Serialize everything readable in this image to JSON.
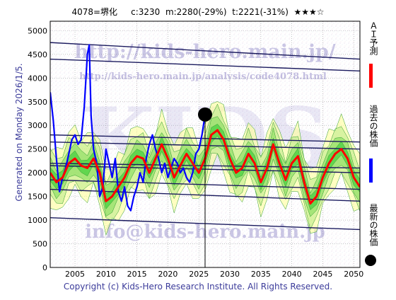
{
  "header": {
    "code": "4078=堺化",
    "current": "c:3230",
    "model": "m:2280(-29%)",
    "target": "t:2221(-31%)",
    "stars": "★★★☆"
  },
  "watermark": {
    "url": "http://kids-hero.main.jp/",
    "analysis_url": "http://kids-hero.main.jp/analysis/code4078.html",
    "brand": "KIDS",
    "email": "info@kids-hero.main.jp"
  },
  "side_label": "Generated on Monday 2026/1/5.",
  "footer": "Copyright (c) Kids-Hero Research Institute. All Rights Reserved.",
  "legend": {
    "ai": "ＡＩ予測",
    "past": "過去の株価",
    "latest": "最新の株価"
  },
  "colors": {
    "prediction": "#ff0000",
    "past_price": "#0000ff",
    "latest": "#000000",
    "band_green": "#33cc33",
    "band_yellow": "#ffff99",
    "trend_lines": "#1a1a5e"
  },
  "chart_data": {
    "type": "line",
    "xlim": [
      2001,
      2051
    ],
    "ylim": [
      0,
      5200
    ],
    "x_ticks": [
      "2005",
      "2010",
      "2015",
      "2020",
      "2025",
      "2030",
      "2035",
      "2040",
      "2045",
      "2050"
    ],
    "y_ticks": [
      "0",
      "500",
      "1000",
      "1500",
      "2000",
      "2500",
      "3000",
      "3500",
      "4000",
      "4500",
      "5000"
    ],
    "grid": true,
    "current_marker": {
      "x": 2026.0,
      "y": 3230
    },
    "cursor_x": 2026.0,
    "series": [
      {
        "kind": "past_price",
        "x": [
          2001.0,
          2001.5,
          2002.0,
          2002.5,
          2003.0,
          2003.5,
          2004.0,
          2004.5,
          2005.0,
          2005.5,
          2006.0,
          2006.5,
          2007.0,
          2007.3,
          2007.6,
          2008.0,
          2008.5,
          2009.0,
          2009.5,
          2010.0,
          2010.5,
          2011.0,
          2011.5,
          2012.0,
          2012.5,
          2013.0,
          2013.5,
          2014.0,
          2014.5,
          2015.0,
          2015.5,
          2016.0,
          2016.5,
          2017.0,
          2017.5,
          2018.0,
          2018.5,
          2019.0,
          2019.5,
          2020.0,
          2020.5,
          2021.0,
          2021.5,
          2022.0,
          2022.5,
          2023.0,
          2023.5,
          2024.0,
          2024.5,
          2025.0,
          2025.5,
          2026.0
        ],
        "y": [
          3700,
          3100,
          2300,
          1600,
          1900,
          2100,
          2400,
          2700,
          2800,
          2600,
          2700,
          3400,
          4500,
          4700,
          3200,
          2500,
          2200,
          1500,
          1700,
          2500,
          2200,
          1900,
          2300,
          1600,
          1400,
          1700,
          1300,
          1200,
          1500,
          1700,
          2000,
          1800,
          2300,
          2600,
          2800,
          2500,
          2300,
          2000,
          2200,
          1900,
          2100,
          2300,
          2200,
          2000,
          2100,
          1900,
          1800,
          2000,
          2400,
          2500,
          2800,
          3230
        ]
      },
      {
        "kind": "ai_prediction",
        "x": [
          2001,
          2002,
          2003,
          2004,
          2005,
          2006,
          2007,
          2008,
          2009,
          2010,
          2011,
          2012,
          2013,
          2014,
          2015,
          2016,
          2017,
          2018,
          2019,
          2020,
          2021,
          2022,
          2023,
          2024,
          2025,
          2026,
          2027,
          2028,
          2029,
          2030,
          2031,
          2032,
          2033,
          2034,
          2035,
          2036,
          2037,
          2038,
          2039,
          2040,
          2041,
          2042,
          2043,
          2044,
          2045,
          2046,
          2047,
          2048,
          2049,
          2050,
          2051
        ],
        "y": [
          2000,
          1800,
          1900,
          2200,
          2300,
          2150,
          2100,
          2300,
          2000,
          1400,
          1500,
          1700,
          1900,
          2200,
          2350,
          2300,
          2000,
          2300,
          2600,
          2300,
          1900,
          2150,
          2400,
          2200,
          2000,
          2300,
          2800,
          2900,
          2700,
          2300,
          2000,
          2100,
          2400,
          2200,
          1800,
          2100,
          2600,
          2200,
          1850,
          2200,
          2350,
          1800,
          1350,
          1500,
          1900,
          2200,
          2400,
          2500,
          2300,
          1900,
          1700
        ]
      }
    ],
    "trend_lines": [
      {
        "from": [
          2001,
          4750
        ],
        "to": [
          2051,
          4400
        ]
      },
      {
        "from": [
          2001,
          4400
        ],
        "to": [
          2051,
          4150
        ]
      },
      {
        "from": [
          2001,
          2800
        ],
        "to": [
          2051,
          2650
        ]
      },
      {
        "from": [
          2001,
          2650
        ],
        "to": [
          2051,
          2500
        ]
      },
      {
        "from": [
          2001,
          2200
        ],
        "to": [
          2051,
          2100
        ]
      },
      {
        "from": [
          2001,
          2150
        ],
        "to": [
          2051,
          2000
        ]
      },
      {
        "from": [
          2001,
          1850
        ],
        "to": [
          2051,
          1650
        ]
      },
      {
        "from": [
          2001,
          1650
        ],
        "to": [
          2051,
          1400
        ]
      },
      {
        "from": [
          2001,
          1050
        ],
        "to": [
          2051,
          800
        ]
      }
    ]
  }
}
